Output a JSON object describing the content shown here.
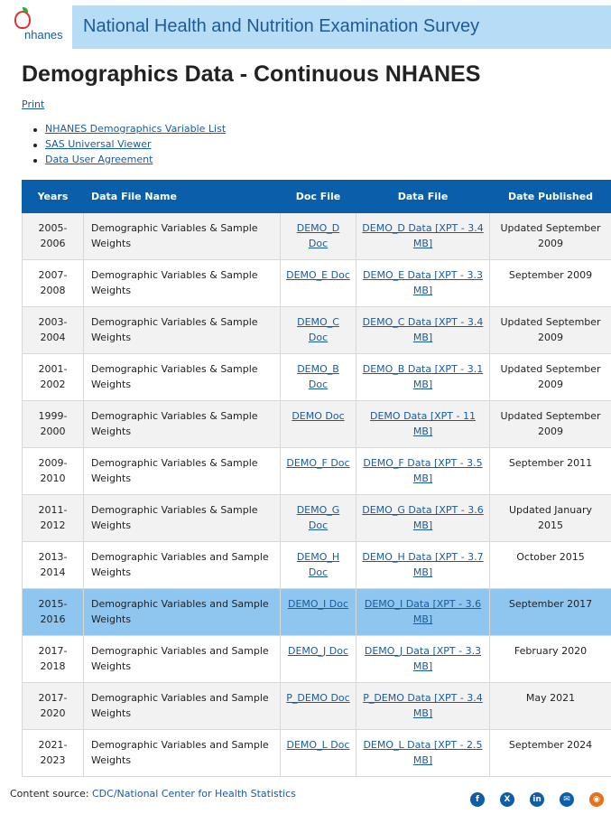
{
  "banner": {
    "title": "National Health and Nutrition Examination Survey",
    "logo_text": "nhanes"
  },
  "page_title": "Demographics Data - Continuous NHANES",
  "print_label": "Print",
  "links": [
    {
      "label": "NHANES Demographics Variable List"
    },
    {
      "label": "SAS Universal Viewer"
    },
    {
      "label": "Data User Agreement"
    }
  ],
  "table": {
    "headers": [
      "Years",
      "Data File Name",
      "Doc File",
      "Data File",
      "Date Published"
    ],
    "rows": [
      {
        "years": "2005-2006",
        "name": "Demographic Variables & Sample Weights",
        "doc": "DEMO_D Doc",
        "data": "DEMO_D Data [XPT - 3.4 MB]",
        "date": "Updated September 2009"
      },
      {
        "years": "2007-2008",
        "name": "Demographic Variables & Sample Weights",
        "doc": "DEMO_E Doc",
        "data": "DEMO_E Data [XPT - 3.3 MB]",
        "date": "September 2009"
      },
      {
        "years": "2003-2004",
        "name": "Demographic Variables & Sample Weights",
        "doc": "DEMO_C Doc",
        "data": "DEMO_C Data [XPT - 3.4 MB]",
        "date": "Updated September 2009"
      },
      {
        "years": "2001-2002",
        "name": "Demographic Variables & Sample Weights",
        "doc": "DEMO_B Doc",
        "data": "DEMO_B Data [XPT - 3.1 MB]",
        "date": "Updated September 2009"
      },
      {
        "years": "1999-2000",
        "name": "Demographic Variables & Sample Weights",
        "doc": "DEMO Doc",
        "data": "DEMO Data [XPT - 11 MB]",
        "date": "Updated September 2009"
      },
      {
        "years": "2009-2010",
        "name": "Demographic Variables & Sample Weights",
        "doc": "DEMO_F Doc",
        "data": "DEMO_F Data [XPT - 3.5 MB]",
        "date": "September 2011"
      },
      {
        "years": "2011-2012",
        "name": "Demographic Variables & Sample Weights",
        "doc": "DEMO_G Doc",
        "data": "DEMO_G Data [XPT - 3.6 MB]",
        "date": "Updated January 2015"
      },
      {
        "years": "2013-2014",
        "name": "Demographic Variables and Sample Weights",
        "doc": "DEMO_H Doc",
        "data": "DEMO_H Data [XPT - 3.7 MB]",
        "date": "October 2015"
      },
      {
        "years": "2015-2016",
        "name": "Demographic Variables and Sample Weights",
        "doc": "DEMO_I Doc",
        "data": "DEMO_I Data [XPT - 3.6 MB]",
        "date": "September 2017"
      },
      {
        "years": "2017-2018",
        "name": "Demographic Variables and Sample Weights",
        "doc": "DEMO_J Doc",
        "data": "DEMO_J Data [XPT - 3.3 MB]",
        "date": "February 2020"
      },
      {
        "years": "2017-2020",
        "name": "Demographic Variables and Sample Weights",
        "doc": "P_DEMO Doc",
        "data": "P_DEMO Data [XPT - 3.4 MB]",
        "date": "May 2021"
      },
      {
        "years": "2021-2023",
        "name": "Demographic Variables and Sample Weights",
        "doc": "DEMO_L Doc",
        "data": "DEMO_L Data [XPT - 2.5 MB]",
        "date": "September 2024"
      }
    ],
    "highlighted_row": "2015-2016"
  },
  "footer": {
    "source_label": "Content source:",
    "source_link": "CDC/National Center for Health Statistics",
    "social": [
      {
        "icon": "facebook-icon",
        "glyph": "f"
      },
      {
        "icon": "x-icon",
        "glyph": "X"
      },
      {
        "icon": "linkedin-icon",
        "glyph": "in"
      },
      {
        "icon": "email-icon",
        "glyph": "✉"
      },
      {
        "icon": "rss-icon",
        "glyph": "◉"
      }
    ]
  },
  "colors": {
    "header_bg": "#0b5eaa",
    "highlight_row": "#8fc6ef",
    "banner_bg": "#b7dcf5",
    "link": "#1a5b9a"
  }
}
